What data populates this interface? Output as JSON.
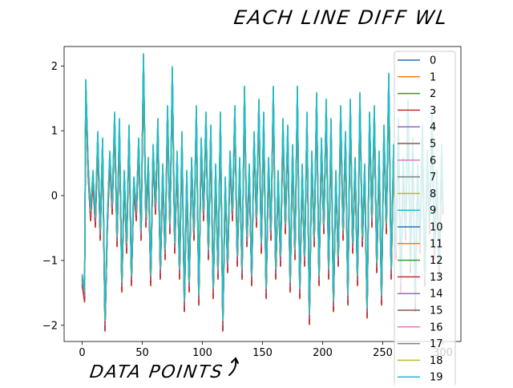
{
  "annotations": {
    "title": "EACH LINE DIFF WL",
    "xlabel": "DATA POINTS"
  },
  "chart_data": {
    "type": "line",
    "title": "",
    "xlabel": "",
    "ylabel": "",
    "xlim": [
      -15,
      315
    ],
    "ylim": [
      -2.25,
      2.3
    ],
    "xticks": [
      0,
      50,
      100,
      150,
      200,
      250,
      300
    ],
    "yticks": [
      -2,
      -1,
      0,
      1,
      2
    ],
    "grid": false,
    "legend_position": "right",
    "n_points": 301,
    "base_series": [
      {
        "x": 0,
        "y": -1.3
      },
      {
        "x": 2,
        "y": -1.55
      },
      {
        "x": 3,
        "y": 1.7
      },
      {
        "x": 5,
        "y": 0.4
      },
      {
        "x": 7,
        "y": -0.3
      },
      {
        "x": 9,
        "y": 0.3
      },
      {
        "x": 11,
        "y": -0.4
      },
      {
        "x": 13,
        "y": 0.9
      },
      {
        "x": 15,
        "y": -0.6
      },
      {
        "x": 17,
        "y": 0.8
      },
      {
        "x": 19,
        "y": -2.0
      },
      {
        "x": 21,
        "y": -0.4
      },
      {
        "x": 23,
        "y": 0.6
      },
      {
        "x": 25,
        "y": -0.2
      },
      {
        "x": 27,
        "y": 1.2
      },
      {
        "x": 29,
        "y": -0.7
      },
      {
        "x": 31,
        "y": 1.1
      },
      {
        "x": 33,
        "y": -1.4
      },
      {
        "x": 35,
        "y": 0.3
      },
      {
        "x": 37,
        "y": -0.8
      },
      {
        "x": 39,
        "y": 1.0
      },
      {
        "x": 41,
        "y": -1.3
      },
      {
        "x": 43,
        "y": 0.2
      },
      {
        "x": 45,
        "y": -0.3
      },
      {
        "x": 47,
        "y": 0.8
      },
      {
        "x": 49,
        "y": -0.6
      },
      {
        "x": 51,
        "y": 2.1
      },
      {
        "x": 53,
        "y": -0.4
      },
      {
        "x": 55,
        "y": 0.5
      },
      {
        "x": 57,
        "y": -1.3
      },
      {
        "x": 59,
        "y": 0.7
      },
      {
        "x": 61,
        "y": -0.2
      },
      {
        "x": 63,
        "y": 1.1
      },
      {
        "x": 65,
        "y": -1.2
      },
      {
        "x": 67,
        "y": 0.4
      },
      {
        "x": 69,
        "y": -0.9
      },
      {
        "x": 71,
        "y": 1.3
      },
      {
        "x": 73,
        "y": -0.5
      },
      {
        "x": 75,
        "y": 1.9
      },
      {
        "x": 77,
        "y": -0.8
      },
      {
        "x": 79,
        "y": 0.6
      },
      {
        "x": 81,
        "y": -1.2
      },
      {
        "x": 83,
        "y": 0.9
      },
      {
        "x": 85,
        "y": -1.7
      },
      {
        "x": 87,
        "y": 0.3
      },
      {
        "x": 89,
        "y": -1.4
      },
      {
        "x": 91,
        "y": 0.5
      },
      {
        "x": 93,
        "y": -0.6
      },
      {
        "x": 95,
        "y": 1.3
      },
      {
        "x": 97,
        "y": -1.6
      },
      {
        "x": 99,
        "y": 0.8
      },
      {
        "x": 101,
        "y": -0.3
      },
      {
        "x": 103,
        "y": 1.2
      },
      {
        "x": 105,
        "y": -0.9
      },
      {
        "x": 107,
        "y": 1.0
      },
      {
        "x": 109,
        "y": -1.5
      },
      {
        "x": 111,
        "y": 0.4
      },
      {
        "x": 113,
        "y": -1.2
      },
      {
        "x": 115,
        "y": 1.2
      },
      {
        "x": 117,
        "y": -2.0
      },
      {
        "x": 119,
        "y": 0.2
      },
      {
        "x": 121,
        "y": -1.1
      },
      {
        "x": 123,
        "y": 0.6
      },
      {
        "x": 125,
        "y": -0.3
      },
      {
        "x": 127,
        "y": 1.3
      },
      {
        "x": 129,
        "y": -1.0
      },
      {
        "x": 131,
        "y": 0.5
      },
      {
        "x": 133,
        "y": -1.2
      },
      {
        "x": 135,
        "y": 1.6
      },
      {
        "x": 137,
        "y": -0.7
      },
      {
        "x": 139,
        "y": 0.4
      },
      {
        "x": 141,
        "y": -1.3
      },
      {
        "x": 143,
        "y": 0.9
      },
      {
        "x": 145,
        "y": -0.4
      },
      {
        "x": 147,
        "y": 1.4
      },
      {
        "x": 149,
        "y": -0.8
      },
      {
        "x": 151,
        "y": 1.2
      },
      {
        "x": 153,
        "y": -1.5
      },
      {
        "x": 155,
        "y": 0.5
      },
      {
        "x": 157,
        "y": -0.6
      },
      {
        "x": 159,
        "y": 1.6
      },
      {
        "x": 161,
        "y": -1.2
      },
      {
        "x": 163,
        "y": 0.3
      },
      {
        "x": 165,
        "y": -1.0
      },
      {
        "x": 167,
        "y": 1.1
      },
      {
        "x": 169,
        "y": -0.5
      },
      {
        "x": 171,
        "y": 1.0
      },
      {
        "x": 173,
        "y": -1.4
      },
      {
        "x": 175,
        "y": 0.7
      },
      {
        "x": 177,
        "y": -0.9
      },
      {
        "x": 179,
        "y": 1.6
      },
      {
        "x": 181,
        "y": -1.5
      },
      {
        "x": 183,
        "y": 0.4
      },
      {
        "x": 185,
        "y": -1.0
      },
      {
        "x": 187,
        "y": 1.2
      },
      {
        "x": 189,
        "y": -1.9
      },
      {
        "x": 191,
        "y": 0.6
      },
      {
        "x": 193,
        "y": -0.7
      },
      {
        "x": 195,
        "y": 1.5
      },
      {
        "x": 197,
        "y": -1.3
      },
      {
        "x": 199,
        "y": 0.8
      },
      {
        "x": 201,
        "y": -0.5
      },
      {
        "x": 203,
        "y": 1.4
      },
      {
        "x": 205,
        "y": -1.2
      },
      {
        "x": 207,
        "y": 1.1
      },
      {
        "x": 209,
        "y": -1.7
      },
      {
        "x": 211,
        "y": 0.3
      },
      {
        "x": 213,
        "y": -1.0
      },
      {
        "x": 215,
        "y": 1.3
      },
      {
        "x": 217,
        "y": -0.6
      },
      {
        "x": 219,
        "y": 0.9
      },
      {
        "x": 221,
        "y": -1.6
      },
      {
        "x": 223,
        "y": 1.4
      },
      {
        "x": 225,
        "y": -0.8
      },
      {
        "x": 227,
        "y": 0.5
      },
      {
        "x": 229,
        "y": -1.3
      },
      {
        "x": 231,
        "y": 1.5
      },
      {
        "x": 233,
        "y": -0.7
      },
      {
        "x": 235,
        "y": 0.4
      },
      {
        "x": 237,
        "y": -1.8
      },
      {
        "x": 239,
        "y": 1.2
      },
      {
        "x": 241,
        "y": -0.4
      },
      {
        "x": 243,
        "y": 1.3
      },
      {
        "x": 245,
        "y": -1.1
      },
      {
        "x": 247,
        "y": 0.6
      },
      {
        "x": 249,
        "y": -1.6
      },
      {
        "x": 251,
        "y": 1.0
      },
      {
        "x": 253,
        "y": -0.5
      },
      {
        "x": 255,
        "y": 1.8
      },
      {
        "x": 257,
        "y": -1.2
      },
      {
        "x": 259,
        "y": 0.7
      },
      {
        "x": 261,
        "y": -0.9
      },
      {
        "x": 263,
        "y": 1.1
      },
      {
        "x": 265,
        "y": -1.4
      },
      {
        "x": 267,
        "y": 0.5
      },
      {
        "x": 269,
        "y": -0.6
      },
      {
        "x": 271,
        "y": 1.4
      },
      {
        "x": 273,
        "y": -1.1
      },
      {
        "x": 275,
        "y": 0.8
      },
      {
        "x": 277,
        "y": -1.7
      },
      {
        "x": 279,
        "y": 0.4
      },
      {
        "x": 281,
        "y": -0.8
      },
      {
        "x": 283,
        "y": 1.0
      },
      {
        "x": 285,
        "y": -1.3
      },
      {
        "x": 287,
        "y": 0.6
      },
      {
        "x": 289,
        "y": -0.5
      },
      {
        "x": 291,
        "y": 1.2
      },
      {
        "x": 293,
        "y": -0.9
      },
      {
        "x": 295,
        "y": 0.3
      },
      {
        "x": 297,
        "y": -1.2
      },
      {
        "x": 299,
        "y": 0.7
      },
      {
        "x": 300,
        "y": -0.2
      }
    ],
    "series_offsets": [
      0.04,
      0.03,
      0.02,
      0.01,
      0,
      -0.01,
      -0.02,
      -0.03,
      -0.04,
      -0.05,
      -0.06,
      -0.07,
      -0.08,
      -0.09,
      0,
      0.05,
      0.06,
      0.07,
      0.08,
      0.09
    ],
    "series": [
      {
        "name": "0",
        "color": "#1f77b4"
      },
      {
        "name": "1",
        "color": "#ff7f0e"
      },
      {
        "name": "2",
        "color": "#2ca02c"
      },
      {
        "name": "3",
        "color": "#d62728"
      },
      {
        "name": "4",
        "color": "#9467bd"
      },
      {
        "name": "5",
        "color": "#8c564b"
      },
      {
        "name": "6",
        "color": "#e377c2"
      },
      {
        "name": "7",
        "color": "#7f7f7f"
      },
      {
        "name": "8",
        "color": "#bcbd22"
      },
      {
        "name": "9",
        "color": "#17becf"
      },
      {
        "name": "10",
        "color": "#1f77b4"
      },
      {
        "name": "11",
        "color": "#ff7f0e"
      },
      {
        "name": "12",
        "color": "#2ca02c"
      },
      {
        "name": "13",
        "color": "#d62728"
      },
      {
        "name": "14",
        "color": "#9467bd"
      },
      {
        "name": "15",
        "color": "#8c564b"
      },
      {
        "name": "16",
        "color": "#e377c2"
      },
      {
        "name": "17",
        "color": "#7f7f7f"
      },
      {
        "name": "18",
        "color": "#bcbd22"
      },
      {
        "name": "19",
        "color": "#17becf"
      }
    ]
  }
}
